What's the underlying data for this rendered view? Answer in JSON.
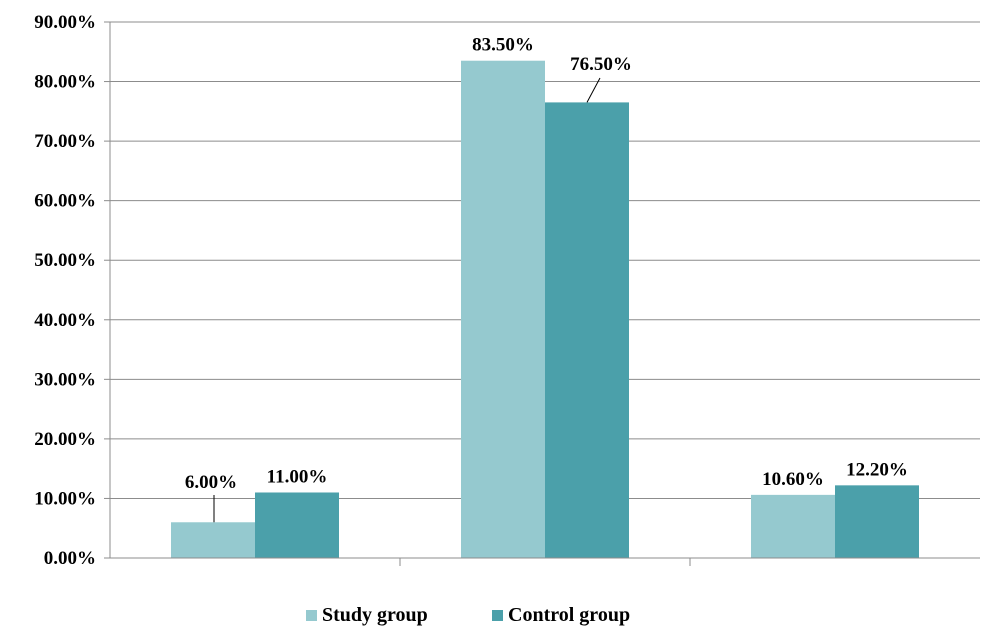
{
  "chart_data": {
    "type": "bar",
    "categories": [
      "",
      "",
      ""
    ],
    "series": [
      {
        "name": "Study group",
        "values": [
          6.0,
          83.5,
          10.6
        ],
        "labels": [
          "6.00%",
          "83.50%",
          "10.60%"
        ],
        "color": "#95c9cf"
      },
      {
        "name": "Control group",
        "values": [
          11.0,
          76.5,
          12.2
        ],
        "labels": [
          "11.00%",
          "76.50%",
          "12.20%"
        ],
        "color": "#4ba0aa"
      }
    ],
    "ylim": [
      0,
      90
    ],
    "yticks": [
      "0.00%",
      "10.00%",
      "20.00%",
      "30.00%",
      "40.00%",
      "50.00%",
      "60.00%",
      "70.00%",
      "80.00%",
      "90.00%"
    ],
    "grid": true,
    "legend_position": "bottom",
    "title": "",
    "xlabel": "",
    "ylabel": ""
  }
}
